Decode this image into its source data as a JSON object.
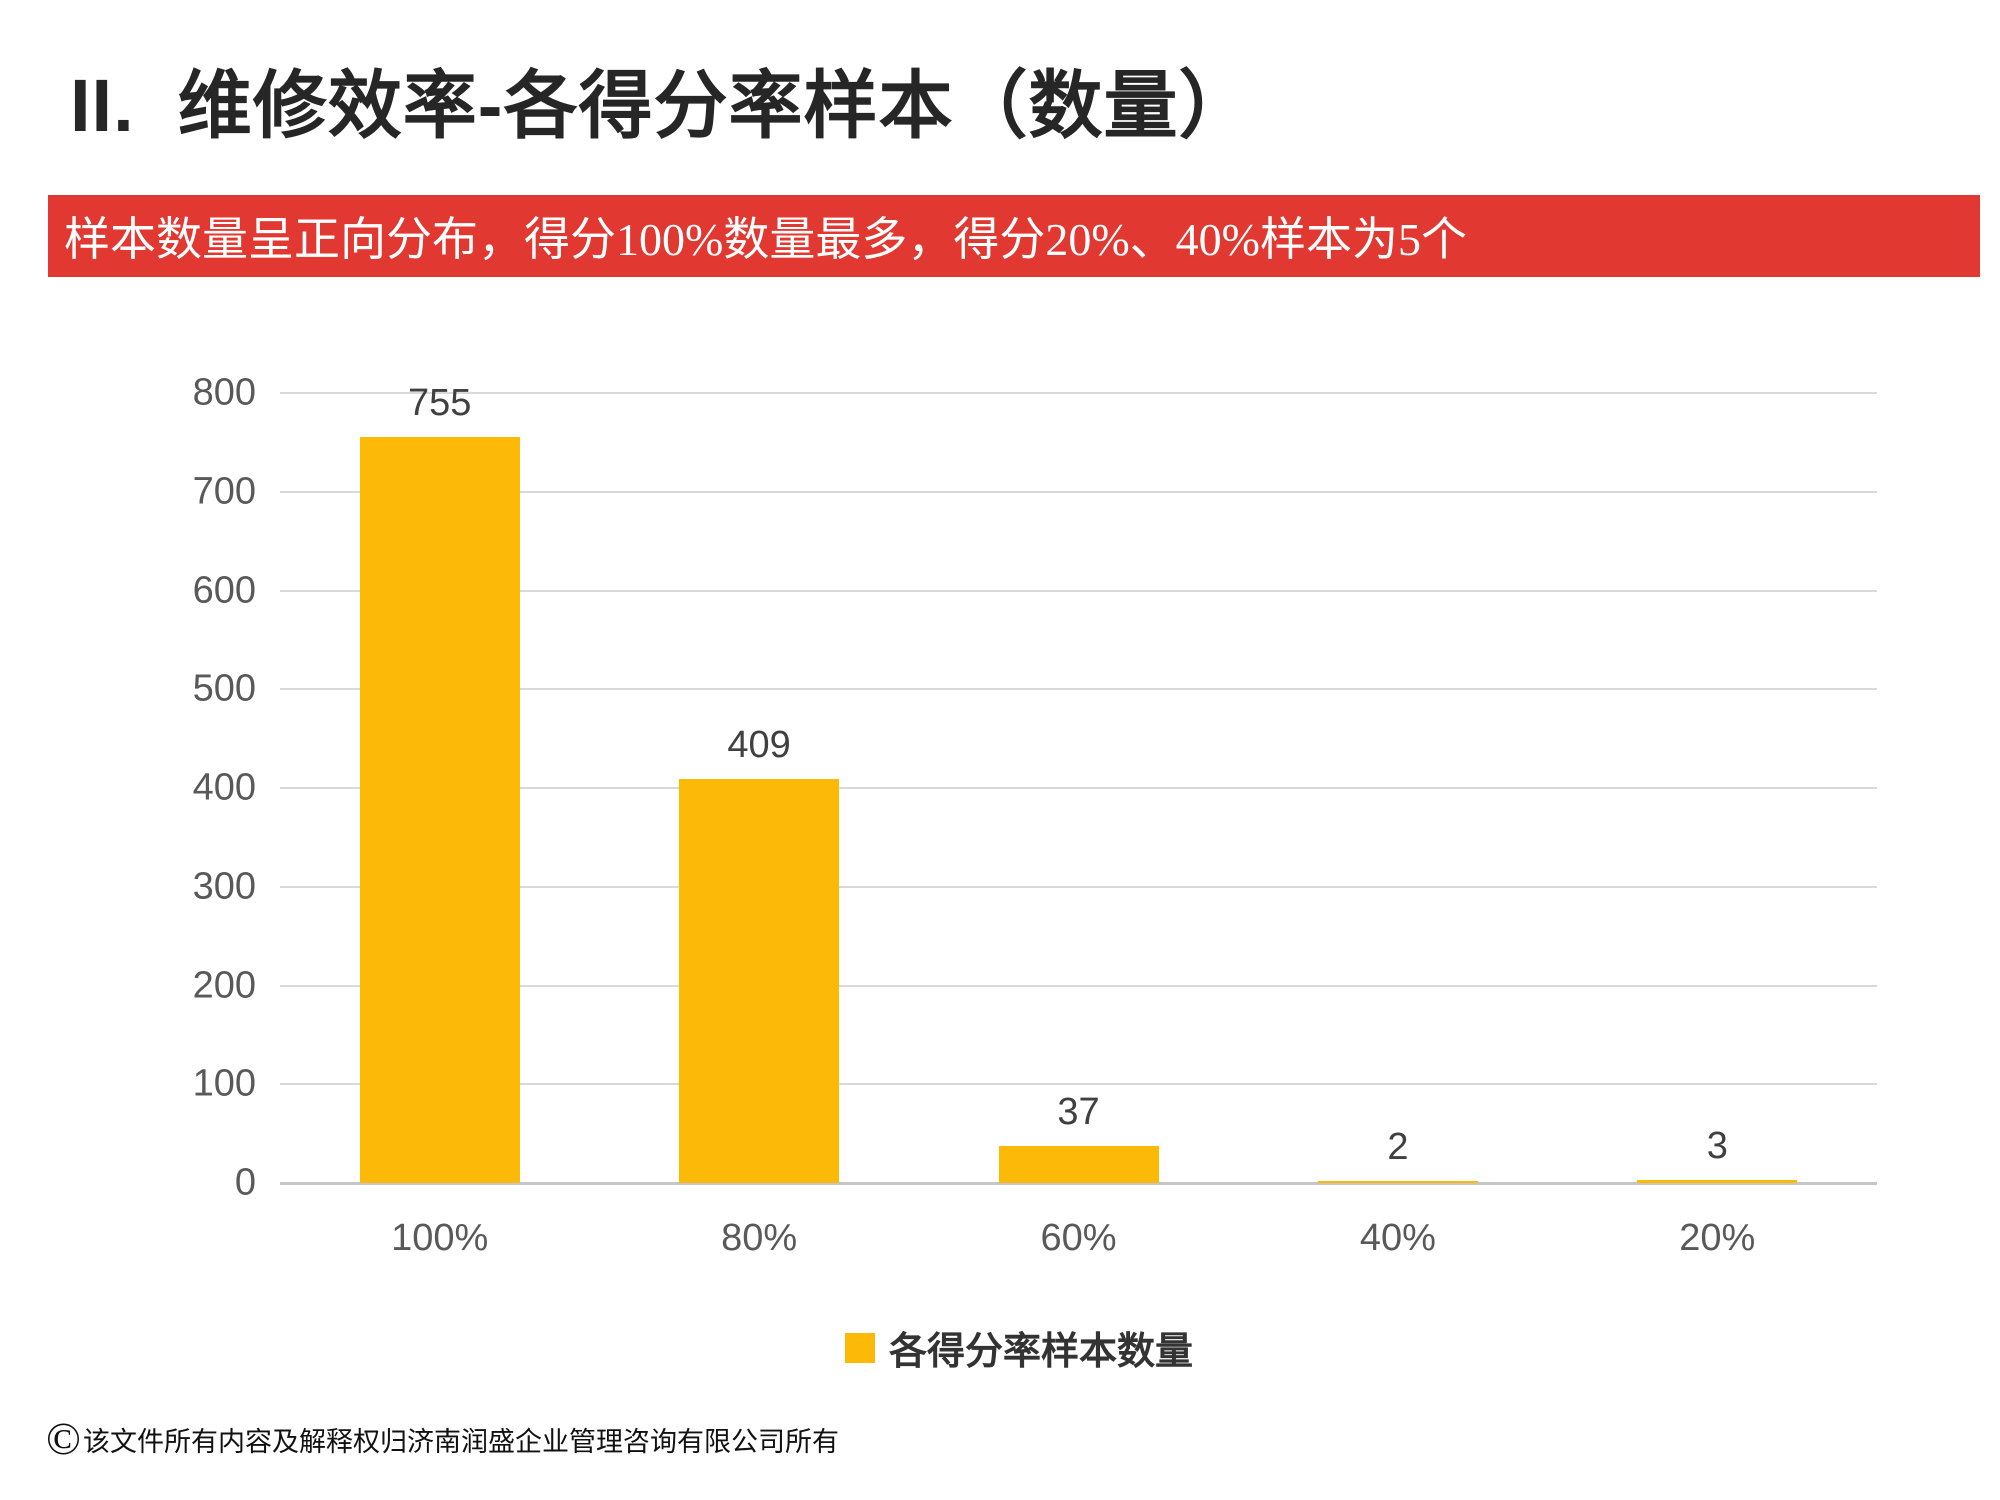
{
  "slide": {
    "title": "II.  维修效率-各得分率样本（数量）",
    "banner": {
      "text": "样本数量呈正向分布，得分100%数量最多，得分20%、40%样本为5个",
      "bg": "#E13832",
      "fg": "#FFFFFF"
    },
    "footer": {
      "copyright_symbol": "©",
      "text": "该文件所有内容及解释权归济南润盛企业管理咨询有限公司所有"
    }
  },
  "chart_data": {
    "type": "bar",
    "categories": [
      "100%",
      "80%",
      "60%",
      "40%",
      "20%"
    ],
    "values": [
      755,
      409,
      37,
      2,
      3
    ],
    "series": [
      {
        "name": "各得分率样本数量",
        "values": [
          755,
          409,
          37,
          2,
          3
        ]
      }
    ],
    "title": "",
    "xlabel": "",
    "ylabel": "",
    "ylim": [
      0,
      800
    ],
    "yticks": [
      0,
      100,
      200,
      300,
      400,
      500,
      600,
      700,
      800
    ],
    "grid": true,
    "legend_position": "bottom",
    "legend_label": "各得分率样本数量",
    "bar_color": "#FCB908",
    "gridline_color": "#D9D9D9",
    "axis_label_color": "#595959",
    "value_label_color": "#404040"
  }
}
